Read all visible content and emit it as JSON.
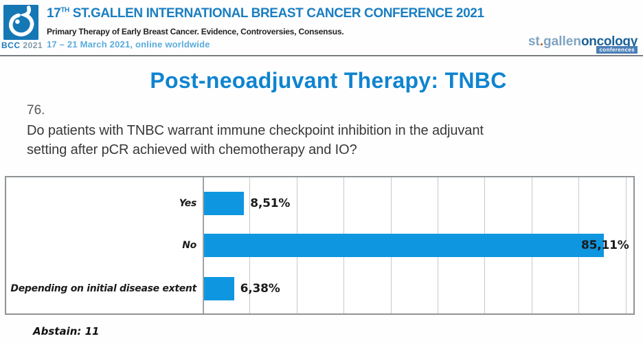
{
  "header": {
    "logo": {
      "icon": "drop-icon",
      "bcc": "BCC",
      "year": "2021"
    },
    "title_prefix": "17",
    "title_sup": "TH",
    "title_rest": " ST.GALLEN INTERNATIONAL BREAST CANCER CONFERENCE 2021",
    "subtitle": "Primary Therapy of Early Breast Cancer. Evidence, Controversies, Consensus.",
    "dates": "17 – 21 March 2021, online worldwide",
    "org_logo": {
      "st": "st",
      "dot": ".",
      "gallen": "gallen",
      "oncology": "oncology",
      "badge": "conferences"
    }
  },
  "slide": {
    "title": "Post-neoadjuvant Therapy: TNBC",
    "question_number": "76.",
    "question_lines": [
      "Do patients with TNBC warrant immune checkpoint inhibition in the adjuvant",
      "setting after pCR achieved with chemotherapy and IO?"
    ],
    "abstain": "Abstain: 11"
  },
  "chart_data": {
    "type": "bar",
    "orientation": "horizontal",
    "title": "",
    "xlabel": "",
    "ylabel": "",
    "categories": [
      "Yes",
      "No",
      "Depending on initial disease extent"
    ],
    "values": [
      8.51,
      85.11,
      6.38
    ],
    "value_labels": [
      "8,51%",
      "85,11%",
      "6,38%"
    ],
    "xlim": [
      0,
      100
    ],
    "gridline_interval": 10,
    "grid": true,
    "legend": false,
    "bar_color": "#0e96e0"
  },
  "colors": {
    "brand_blue": "#1a7ec2",
    "slide_title_blue": "#0f84d0",
    "bar_blue": "#0e96e0",
    "date_blue": "#5aabdc",
    "logo_square_blue": "#1677b5",
    "badge_blue": "#4a7fb7",
    "text_dark": "#383838"
  }
}
